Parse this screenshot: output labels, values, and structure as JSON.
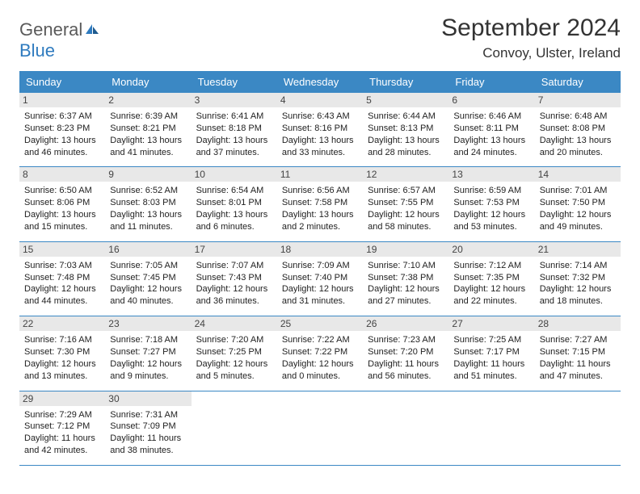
{
  "logo": {
    "part1": "General",
    "part2": "Blue"
  },
  "title": "September 2024",
  "location": "Convoy, Ulster, Ireland",
  "colors": {
    "header_bg": "#3b88c4",
    "header_text": "#ffffff",
    "daynum_bg": "#e8e8e8",
    "border": "#3b88c4",
    "logo_gray": "#5a5a5a",
    "logo_blue": "#2f7bbf"
  },
  "day_names": [
    "Sunday",
    "Monday",
    "Tuesday",
    "Wednesday",
    "Thursday",
    "Friday",
    "Saturday"
  ],
  "weeks": [
    [
      {
        "n": "1",
        "sr": "6:37 AM",
        "ss": "8:23 PM",
        "dh": "13",
        "dm": "46"
      },
      {
        "n": "2",
        "sr": "6:39 AM",
        "ss": "8:21 PM",
        "dh": "13",
        "dm": "41"
      },
      {
        "n": "3",
        "sr": "6:41 AM",
        "ss": "8:18 PM",
        "dh": "13",
        "dm": "37"
      },
      {
        "n": "4",
        "sr": "6:43 AM",
        "ss": "8:16 PM",
        "dh": "13",
        "dm": "33"
      },
      {
        "n": "5",
        "sr": "6:44 AM",
        "ss": "8:13 PM",
        "dh": "13",
        "dm": "28"
      },
      {
        "n": "6",
        "sr": "6:46 AM",
        "ss": "8:11 PM",
        "dh": "13",
        "dm": "24"
      },
      {
        "n": "7",
        "sr": "6:48 AM",
        "ss": "8:08 PM",
        "dh": "13",
        "dm": "20"
      }
    ],
    [
      {
        "n": "8",
        "sr": "6:50 AM",
        "ss": "8:06 PM",
        "dh": "13",
        "dm": "15"
      },
      {
        "n": "9",
        "sr": "6:52 AM",
        "ss": "8:03 PM",
        "dh": "13",
        "dm": "11"
      },
      {
        "n": "10",
        "sr": "6:54 AM",
        "ss": "8:01 PM",
        "dh": "13",
        "dm": "6"
      },
      {
        "n": "11",
        "sr": "6:56 AM",
        "ss": "7:58 PM",
        "dh": "13",
        "dm": "2"
      },
      {
        "n": "12",
        "sr": "6:57 AM",
        "ss": "7:55 PM",
        "dh": "12",
        "dm": "58"
      },
      {
        "n": "13",
        "sr": "6:59 AM",
        "ss": "7:53 PM",
        "dh": "12",
        "dm": "53"
      },
      {
        "n": "14",
        "sr": "7:01 AM",
        "ss": "7:50 PM",
        "dh": "12",
        "dm": "49"
      }
    ],
    [
      {
        "n": "15",
        "sr": "7:03 AM",
        "ss": "7:48 PM",
        "dh": "12",
        "dm": "44"
      },
      {
        "n": "16",
        "sr": "7:05 AM",
        "ss": "7:45 PM",
        "dh": "12",
        "dm": "40"
      },
      {
        "n": "17",
        "sr": "7:07 AM",
        "ss": "7:43 PM",
        "dh": "12",
        "dm": "36"
      },
      {
        "n": "18",
        "sr": "7:09 AM",
        "ss": "7:40 PM",
        "dh": "12",
        "dm": "31"
      },
      {
        "n": "19",
        "sr": "7:10 AM",
        "ss": "7:38 PM",
        "dh": "12",
        "dm": "27"
      },
      {
        "n": "20",
        "sr": "7:12 AM",
        "ss": "7:35 PM",
        "dh": "12",
        "dm": "22"
      },
      {
        "n": "21",
        "sr": "7:14 AM",
        "ss": "7:32 PM",
        "dh": "12",
        "dm": "18"
      }
    ],
    [
      {
        "n": "22",
        "sr": "7:16 AM",
        "ss": "7:30 PM",
        "dh": "12",
        "dm": "13"
      },
      {
        "n": "23",
        "sr": "7:18 AM",
        "ss": "7:27 PM",
        "dh": "12",
        "dm": "9"
      },
      {
        "n": "24",
        "sr": "7:20 AM",
        "ss": "7:25 PM",
        "dh": "12",
        "dm": "5"
      },
      {
        "n": "25",
        "sr": "7:22 AM",
        "ss": "7:22 PM",
        "dh": "12",
        "dm": "0"
      },
      {
        "n": "26",
        "sr": "7:23 AM",
        "ss": "7:20 PM",
        "dh": "11",
        "dm": "56"
      },
      {
        "n": "27",
        "sr": "7:25 AM",
        "ss": "7:17 PM",
        "dh": "11",
        "dm": "51"
      },
      {
        "n": "28",
        "sr": "7:27 AM",
        "ss": "7:15 PM",
        "dh": "11",
        "dm": "47"
      }
    ],
    [
      {
        "n": "29",
        "sr": "7:29 AM",
        "ss": "7:12 PM",
        "dh": "11",
        "dm": "42"
      },
      {
        "n": "30",
        "sr": "7:31 AM",
        "ss": "7:09 PM",
        "dh": "11",
        "dm": "38"
      },
      null,
      null,
      null,
      null,
      null
    ]
  ]
}
